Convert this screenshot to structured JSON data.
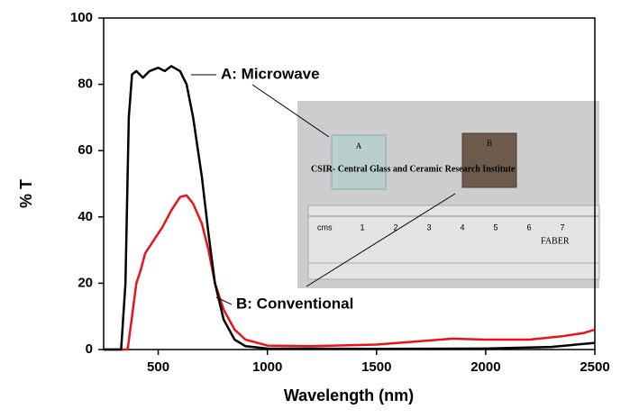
{
  "chart_data": {
    "type": "line",
    "xlabel": "Wavelength (nm)",
    "ylabel": "% T",
    "xlim": [
      250,
      2500
    ],
    "ylim": [
      0,
      100
    ],
    "xticks": [
      500,
      1000,
      1500,
      2000,
      2500
    ],
    "yticks": [
      0,
      20,
      40,
      60,
      80,
      100
    ],
    "series": [
      {
        "name": "A: Microwave",
        "color": "#000000",
        "x": [
          250,
          330,
          350,
          365,
          380,
          400,
          430,
          460,
          500,
          530,
          560,
          600,
          630,
          660,
          700,
          730,
          760,
          800,
          850,
          900,
          1000,
          1500,
          2000,
          2300,
          2500
        ],
        "values": [
          0,
          0,
          20,
          70,
          83,
          84,
          82,
          84,
          85,
          84,
          85.5,
          84,
          80,
          70,
          52,
          35,
          20,
          9,
          3,
          1,
          0.3,
          0.2,
          0.3,
          0.8,
          2
        ]
      },
      {
        "name": "B: Conventional",
        "color": "#e8141c",
        "x": [
          250,
          360,
          380,
          400,
          420,
          440,
          480,
          520,
          560,
          600,
          630,
          660,
          700,
          730,
          760,
          800,
          850,
          900,
          1000,
          1200,
          1500,
          1700,
          1850,
          2000,
          2200,
          2350,
          2450,
          2500
        ],
        "values": [
          0,
          0,
          10,
          20,
          24,
          29,
          33,
          37,
          42,
          46,
          46.5,
          44,
          38,
          30,
          20,
          12,
          6,
          3,
          1.2,
          1,
          1.5,
          2.5,
          3.3,
          3,
          3,
          4,
          5,
          6
        ]
      }
    ],
    "inset": {
      "sample_labels": [
        "A",
        "B"
      ],
      "caption": "CSIR- Central Glass and Ceramic Research Institute",
      "ruler_unit": "cms",
      "ruler_numbers": [
        "1",
        "2",
        "3",
        "4",
        "5",
        "6",
        "7"
      ],
      "brand": "FABER"
    }
  }
}
